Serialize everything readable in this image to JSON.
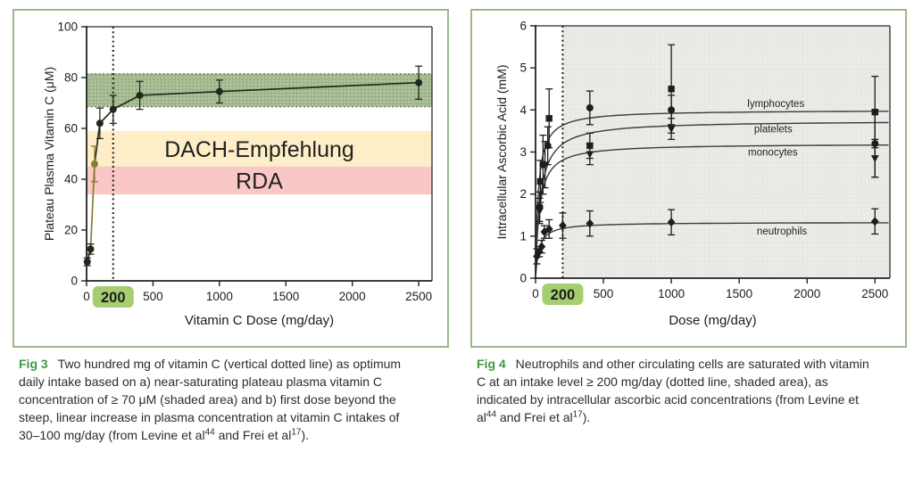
{
  "page": {
    "background": "#ffffff",
    "panel_border_color": "#9cb88a",
    "fig_label_color": "#3e9a40",
    "highlight_color": "#a6ce70"
  },
  "chart_data": [
    {
      "type": "line",
      "title": "",
      "xlabel": "Vitamin C Dose (mg/day)",
      "ylabel": "Plateau Plasma Vitamin C (μM)",
      "xlim": [
        0,
        2600
      ],
      "ylim": [
        0,
        100
      ],
      "xticks": [
        0,
        500,
        1000,
        1500,
        2000,
        2500
      ],
      "yticks": [
        0,
        20,
        40,
        60,
        80,
        100
      ],
      "grid": false,
      "legend": "none",
      "dotted_vline_x": 200,
      "highlight_tick": {
        "value": 200,
        "label": "200",
        "fill": "#a6ce70"
      },
      "bands": [
        {
          "name": "near-saturating-plateau-shaded-area",
          "y0": 68.5,
          "y1": 81.5,
          "fill": "#aec19b",
          "pattern": "crosshatch",
          "edge": "#5c7750"
        },
        {
          "name": "dach-empfehlung",
          "label": "DACH-Empfehlung",
          "y0": 45,
          "y1": 59,
          "fill": "#fdeec8",
          "label_y": 52
        },
        {
          "name": "rda",
          "label": "RDA",
          "y0": 34,
          "y1": 45,
          "fill": "#f9c7c6",
          "label_y": 39.5
        }
      ],
      "series": [
        {
          "name": "plateau plasma vitamin C",
          "marker": "circle",
          "color": "#23281d",
          "points": [
            {
              "x": 5,
              "y": 7.5,
              "err": 1.5
            },
            {
              "x": 30,
              "y": 12.5,
              "err": 2
            },
            {
              "x": 60,
              "y": 46,
              "err": 7,
              "color": "#8a7a2f",
              "line_color": "#8a7a2f"
            },
            {
              "x": 100,
              "y": 62,
              "err": 6
            },
            {
              "x": 200,
              "y": 67.5,
              "err": 5.5
            },
            {
              "x": 400,
              "y": 73,
              "err": 5.5
            },
            {
              "x": 1000,
              "y": 74.5,
              "err": 4.5
            },
            {
              "x": 2500,
              "y": 78,
              "err": 6.5
            }
          ]
        }
      ]
    },
    {
      "type": "scatter",
      "title": "",
      "xlabel": "Dose (mg/day)",
      "ylabel": "Intracellular Ascorbic Acid (mM)",
      "xlim": [
        0,
        2610
      ],
      "ylim": [
        0,
        6
      ],
      "xticks": [
        0,
        500,
        1000,
        1500,
        2000,
        2500
      ],
      "yticks": [
        0,
        1,
        2,
        3,
        4,
        5,
        6
      ],
      "grid": false,
      "legend": "inline-labels",
      "dotted_vline_x": 200,
      "highlight_tick": {
        "value": 200,
        "label": "200",
        "fill": "#a6ce70"
      },
      "shaded_region": {
        "x0": 200,
        "x1": 2610,
        "fill": "#ebebe7"
      },
      "series": [
        {
          "name": "lymphocytes",
          "marker": "circle",
          "plateau": 4.0,
          "km": 20,
          "label_x": 1560,
          "label_y": 4.16,
          "points": [
            {
              "x": 30,
              "y": 1.7,
              "err": 0.35
            },
            {
              "x": 55,
              "y": 2.7,
              "err": 0.7
            },
            {
              "x": 90,
              "y": 3.15,
              "err": 0.45
            },
            {
              "x": 400,
              "y": 4.05,
              "err": 0.4
            },
            {
              "x": 1000,
              "y": 4.0,
              "err": 0.35
            },
            {
              "x": 2500,
              "y": 3.2,
              "err": 0.8
            }
          ]
        },
        {
          "name": "platelets",
          "marker": "square",
          "plateau": 3.75,
          "km": 35,
          "label_x": 1610,
          "label_y": 3.55,
          "points": [
            {
              "x": 35,
              "y": 2.3,
              "err": 0.5
            },
            {
              "x": 100,
              "y": 3.8,
              "err": 0.7
            },
            {
              "x": 400,
              "y": 3.15,
              "err": 0.3
            },
            {
              "x": 1000,
              "y": 4.5,
              "err": 1.05
            },
            {
              "x": 2500,
              "y": 3.95,
              "err": 0.85
            }
          ]
        },
        {
          "name": "monocytes",
          "marker": "triangle-down",
          "plateau": 3.2,
          "km": 28,
          "label_x": 1565,
          "label_y": 3.0,
          "points": [
            {
              "x": 30,
              "y": 1.6,
              "err": 0.3
            },
            {
              "x": 70,
              "y": 2.7,
              "err": 0.55
            },
            {
              "x": 400,
              "y": 2.95,
              "err": 0.25
            },
            {
              "x": 1000,
              "y": 3.55,
              "err": 0.25
            },
            {
              "x": 2500,
              "y": 2.85,
              "err": 0.45
            }
          ]
        },
        {
          "name": "neutrophils",
          "marker": "diamond",
          "plateau": 1.33,
          "km": 25,
          "label_x": 1630,
          "label_y": 1.12,
          "points": [
            {
              "x": 10,
              "y": 0.52,
              "err": 0.18
            },
            {
              "x": 28,
              "y": 0.63,
              "err": 0.12
            },
            {
              "x": 45,
              "y": 0.75,
              "err": 0.15
            },
            {
              "x": 65,
              "y": 1.1,
              "err": 0.15
            },
            {
              "x": 100,
              "y": 1.17,
              "err": 0.22
            },
            {
              "x": 200,
              "y": 1.25,
              "err": 0.3
            },
            {
              "x": 400,
              "y": 1.3,
              "err": 0.3
            },
            {
              "x": 1000,
              "y": 1.33,
              "err": 0.3
            },
            {
              "x": 2500,
              "y": 1.35,
              "err": 0.3
            }
          ]
        }
      ]
    }
  ],
  "captions": [
    {
      "label_color": "#3e9a40",
      "segments": [
        {
          "t": "Fig 3",
          "label": true
        },
        {
          "t": "Two hundred mg of vitamin C (vertical dotted line) as optimum daily intake based on a) near-saturating plateau plasma vitamin C concentration of ≥ 70 μM (shaded area) and b) first dose beyond the steep, linear increase in plasma concentration at vitamin C intakes of 30–100 mg/day (from Levine et al"
        },
        {
          "t": "44",
          "sup": true
        },
        {
          "t": " and Frei et al"
        },
        {
          "t": "17",
          "sup": true
        },
        {
          "t": ")."
        }
      ]
    },
    {
      "label_color": "#3e9a40",
      "segments": [
        {
          "t": "Fig 4",
          "label": true
        },
        {
          "t": "Neutrophils and other circulating cells are saturated with vitamin C at an intake level ≥ 200 mg/day (dotted line, shaded area), as indicated by intracellular ascorbic acid concentrations (from Levine et al"
        },
        {
          "t": "44",
          "sup": true
        },
        {
          "t": " and Frei et al"
        },
        {
          "t": "17",
          "sup": true
        },
        {
          "t": ")."
        }
      ]
    }
  ]
}
